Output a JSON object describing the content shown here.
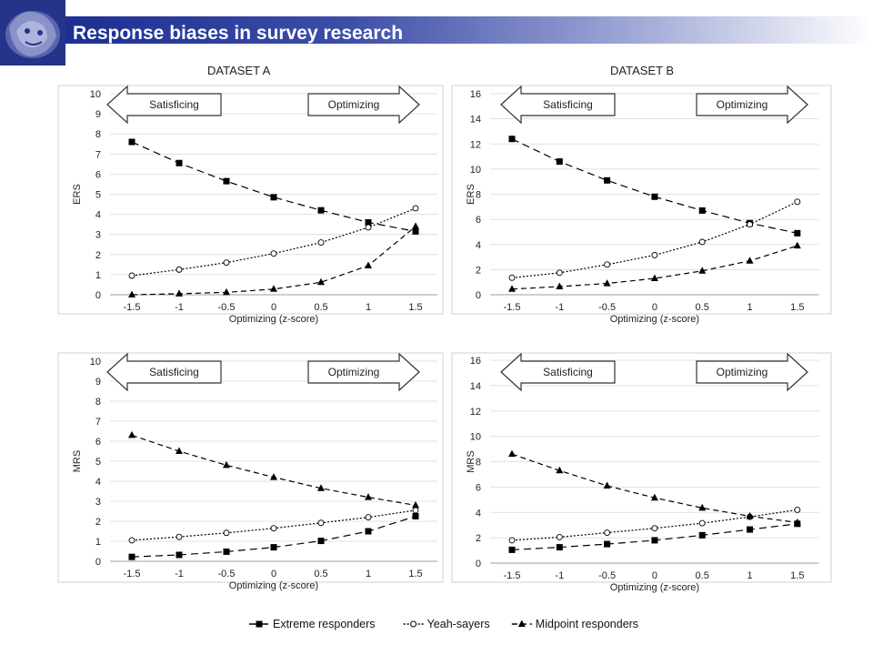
{
  "header": {
    "title": "Response biases in survey research"
  },
  "datasets": {
    "a_label": "DATASET A",
    "b_label": "DATASET B"
  },
  "arrows": {
    "left": "Satisficing",
    "right": "Optimizing"
  },
  "legend": [
    {
      "name": "Extreme responders",
      "marker": "square",
      "dash": "8,5"
    },
    {
      "name": "Yeah-sayers",
      "marker": "circle",
      "dash": "2,2"
    },
    {
      "name": "Midpoint responders",
      "marker": "triangle",
      "dash": "6,4"
    }
  ],
  "colors": {
    "header_start": "#1c2f92",
    "series": "#000000",
    "grid": "#d9d9d9"
  },
  "chart_data": [
    {
      "type": "line",
      "dataset": "DATASET A",
      "xlabel": "Optimizing (z-score)",
      "ylabel": "ERS",
      "x": [
        "-1.5",
        "-1",
        "-0.5",
        "0",
        "0.5",
        "1",
        "1.5"
      ],
      "ylim": [
        0,
        10
      ],
      "yticks": [
        0,
        1,
        2,
        3,
        4,
        5,
        6,
        7,
        8,
        9,
        10
      ],
      "series": [
        {
          "name": "Extreme responders",
          "values": [
            7.6,
            6.55,
            5.65,
            4.85,
            4.2,
            3.6,
            3.15
          ]
        },
        {
          "name": "Yeah-sayers",
          "values": [
            0.95,
            1.25,
            1.6,
            2.05,
            2.6,
            3.35,
            4.3
          ]
        },
        {
          "name": "Midpoint responders",
          "values": [
            0.0,
            0.05,
            0.12,
            0.28,
            0.62,
            1.45,
            3.4
          ]
        }
      ]
    },
    {
      "type": "line",
      "dataset": "DATASET B",
      "xlabel": "Optimizing (z-score)",
      "ylabel": "ERS",
      "x": [
        "-1.5",
        "-1",
        "-0.5",
        "0",
        "0.5",
        "1",
        "1.5"
      ],
      "ylim": [
        0,
        16
      ],
      "yticks": [
        0,
        2,
        4,
        6,
        8,
        10,
        12,
        14,
        16
      ],
      "series": [
        {
          "name": "Extreme responders",
          "values": [
            12.4,
            10.6,
            9.1,
            7.8,
            6.7,
            5.7,
            4.9
          ]
        },
        {
          "name": "Yeah-sayers",
          "values": [
            1.35,
            1.75,
            2.4,
            3.15,
            4.2,
            5.6,
            7.4
          ]
        },
        {
          "name": "Midpoint responders",
          "values": [
            0.45,
            0.65,
            0.9,
            1.3,
            1.9,
            2.7,
            3.9
          ]
        }
      ]
    },
    {
      "type": "line",
      "dataset": "DATASET A",
      "xlabel": "Optimizing (z-score)",
      "ylabel": "MRS",
      "x": [
        "-1.5",
        "-1",
        "-0.5",
        "0",
        "0.5",
        "1",
        "1.5"
      ],
      "ylim": [
        0,
        10
      ],
      "yticks": [
        0,
        1,
        2,
        3,
        4,
        5,
        6,
        7,
        8,
        9,
        10
      ],
      "series": [
        {
          "name": "Extreme responders",
          "values": [
            0.22,
            0.32,
            0.48,
            0.7,
            1.02,
            1.5,
            2.25
          ]
        },
        {
          "name": "Yeah-sayers",
          "values": [
            1.05,
            1.22,
            1.42,
            1.65,
            1.92,
            2.2,
            2.55
          ]
        },
        {
          "name": "Midpoint responders",
          "values": [
            6.3,
            5.5,
            4.8,
            4.2,
            3.65,
            3.2,
            2.8
          ]
        }
      ]
    },
    {
      "type": "line",
      "dataset": "DATASET B",
      "xlabel": "Optimizing (z-score)",
      "ylabel": "MRS",
      "x": [
        "-1.5",
        "-1",
        "-0.5",
        "0",
        "0.5",
        "1",
        "1.5"
      ],
      "ylim": [
        0,
        16
      ],
      "yticks": [
        0,
        2,
        4,
        6,
        8,
        10,
        12,
        14,
        16
      ],
      "series": [
        {
          "name": "Extreme responders",
          "values": [
            1.05,
            1.25,
            1.5,
            1.8,
            2.2,
            2.65,
            3.1
          ]
        },
        {
          "name": "Yeah-sayers",
          "values": [
            1.8,
            2.05,
            2.4,
            2.75,
            3.15,
            3.65,
            4.2
          ]
        },
        {
          "name": "Midpoint responders",
          "values": [
            8.6,
            7.3,
            6.1,
            5.15,
            4.35,
            3.7,
            3.2
          ]
        }
      ]
    }
  ]
}
